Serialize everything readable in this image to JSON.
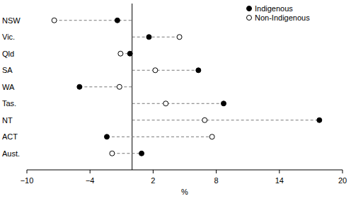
{
  "chart_data": {
    "type": "dot",
    "orientation": "horizontal",
    "xlabel": "%",
    "categories": [
      "NSW",
      "Vic.",
      "Qld",
      "SA",
      "WA",
      "Tas.",
      "NT",
      "ACT",
      "Aust."
    ],
    "series": [
      {
        "name": "Indigenous",
        "color": "#000000",
        "marker": "filled",
        "values": [
          -1.4,
          1.6,
          -0.2,
          6.3,
          -5.0,
          8.7,
          17.8,
          -2.4,
          0.9
        ]
      },
      {
        "name": "Non-Indigenous",
        "color": "#000000",
        "marker": "open",
        "values": [
          -7.4,
          4.5,
          -1.1,
          2.2,
          -1.2,
          3.2,
          6.9,
          7.6,
          -1.9
        ]
      }
    ],
    "xlim": [
      -10,
      20
    ],
    "xticks": [
      {
        "value": -10,
        "label": "−10"
      },
      {
        "value": -4,
        "label": "−4"
      },
      2,
      8,
      14,
      20
    ],
    "legend": "top-right",
    "line_style": "dashed"
  }
}
